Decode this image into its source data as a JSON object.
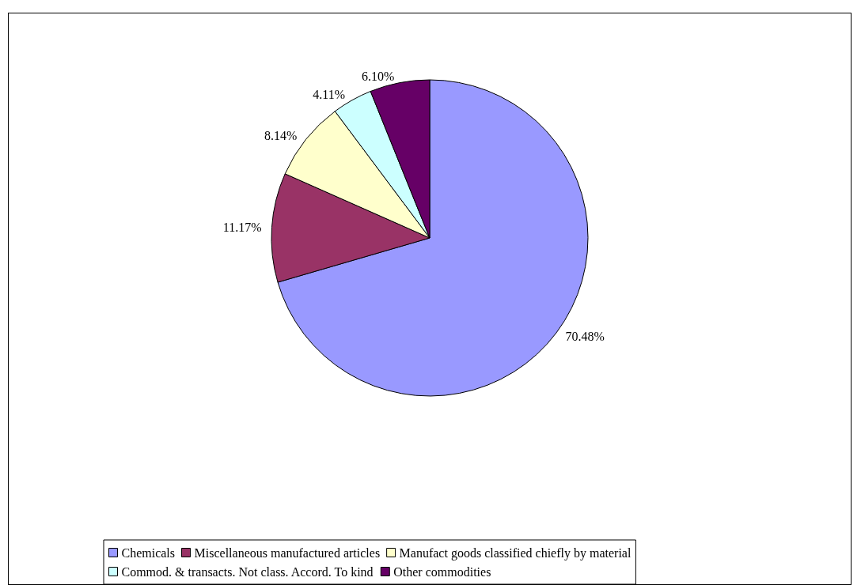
{
  "chart_data": {
    "type": "pie",
    "categories": [
      "Chemicals",
      "Miscellaneous manufactured articles",
      "Manufact goods classified chiefly by material",
      "Commod. & transacts. Not class. Accord. To kind",
      "Other commodities"
    ],
    "values": [
      70.48,
      11.17,
      8.14,
      4.11,
      6.1
    ],
    "value_labels": [
      "70.48%",
      "11.17%",
      "8.14%",
      "4.11%",
      "6.10%"
    ],
    "colors": [
      "#9999ff",
      "#993366",
      "#ffffcc",
      "#ccffff",
      "#660066"
    ],
    "legend": "bottom"
  }
}
